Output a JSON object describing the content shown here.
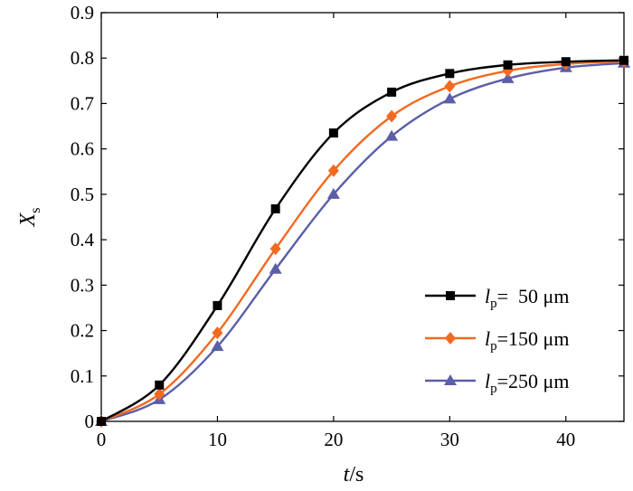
{
  "chart_data": {
    "type": "line",
    "title": "",
    "xlabel": "t/s",
    "ylabel": "X_s",
    "xlim": [
      0,
      45
    ],
    "ylim": [
      0,
      0.9
    ],
    "x_ticks": [
      "0",
      "10",
      "20",
      "30",
      "40"
    ],
    "y_ticks": [
      "0",
      "0.1",
      "0.2",
      "0.3",
      "0.4",
      "0.5",
      "0.6",
      "0.7",
      "0.8",
      "0.9"
    ],
    "grid": false,
    "legend_position": "bottom-right",
    "x": [
      0,
      5,
      10,
      15,
      20,
      25,
      30,
      35,
      40,
      45
    ],
    "series": [
      {
        "name": "l_p=  50 μm",
        "legend_symbol": "l",
        "legend_subscript": "p",
        "legend_suffix": "=  50 μm",
        "marker": "square",
        "color": "#000000",
        "values": [
          0,
          0.08,
          0.255,
          0.468,
          0.635,
          0.725,
          0.766,
          0.785,
          0.792,
          0.795
        ]
      },
      {
        "name": "l_p=150 μm",
        "legend_symbol": "l",
        "legend_subscript": "p",
        "legend_suffix": "=150 μm",
        "marker": "diamond",
        "color": "#f26a21",
        "values": [
          0,
          0.06,
          0.195,
          0.38,
          0.552,
          0.672,
          0.738,
          0.772,
          0.787,
          0.793
        ]
      },
      {
        "name": "l_p=250 μm",
        "legend_symbol": "l",
        "legend_subscript": "p",
        "legend_suffix": "=250 μm",
        "marker": "triangle",
        "color": "#5b5ea8",
        "values": [
          0,
          0.048,
          0.165,
          0.335,
          0.5,
          0.628,
          0.71,
          0.755,
          0.779,
          0.789
        ]
      }
    ]
  }
}
